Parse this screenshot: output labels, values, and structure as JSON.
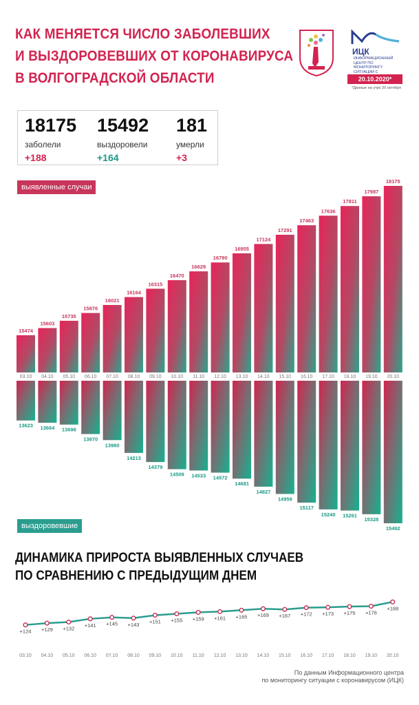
{
  "header": {
    "title_lines": [
      "Как меняется число заболевших",
      "и выздоровевших от коронавируса",
      "в Волгоградской области"
    ],
    "logo_name": "ИЦК",
    "logo_subtitle": "Информационный центр по мониторингу ситуации с коронавирусом",
    "date": "20.10.2020*",
    "date_note": "*Данные на утро 20 октября"
  },
  "stats": {
    "cases": {
      "value": "18175",
      "label": "заболели",
      "delta": "+188"
    },
    "recovered": {
      "value": "15492",
      "label": "выздоровели",
      "delta": "+164"
    },
    "deaths": {
      "value": "181",
      "label": "умерли",
      "delta": "+3"
    }
  },
  "labels": {
    "cases_chip": "выявленные случаи",
    "recovered_chip": "выздоровевшие",
    "growth_title_lines": [
      "Динамика прироста выявленных случаев",
      "по сравнению с предыдущим днем"
    ]
  },
  "source_lines": [
    "По данным Информационного центра",
    "по мониторингу ситуации с коронавирусом (ИЦК)"
  ],
  "colors": {
    "red": "#d2244f",
    "green": "#1a9a86"
  },
  "chart_data": [
    {
      "type": "bar",
      "name": "cases",
      "categories": [
        "03.10",
        "04.10",
        "05.10",
        "06.10",
        "07.10",
        "08.10",
        "09.10",
        "10.10",
        "11.10",
        "12.10",
        "13.10",
        "14.10",
        "15.10",
        "16.10",
        "17.10",
        "18.10",
        "19.10",
        "20.10"
      ],
      "series": [
        {
          "name": "выявленные случаи",
          "values": [
            15474,
            15603,
            15735,
            15876,
            16021,
            16164,
            16315,
            16470,
            16629,
            16790,
            16955,
            17124,
            17291,
            17463,
            17636,
            17811,
            17987,
            18175
          ]
        }
      ]
    },
    {
      "type": "bar",
      "name": "recovered",
      "categories": [
        "03.10",
        "04.10",
        "05.10",
        "06.10",
        "07.10",
        "08.10",
        "09.10",
        "10.10",
        "11.10",
        "12.10",
        "13.10",
        "14.10",
        "15.10",
        "16.10",
        "17.10",
        "18.10",
        "19.10",
        "20.10"
      ],
      "series": [
        {
          "name": "выздоровевшие",
          "values": [
            13623,
            13664,
            13698,
            13870,
            13980,
            14213,
            14379,
            14509,
            14533,
            14572,
            14681,
            14827,
            14959,
            15117,
            15240,
            15261,
            15328,
            15492
          ]
        }
      ]
    },
    {
      "type": "line",
      "name": "growth",
      "categories": [
        "03.10",
        "04.10",
        "05.10",
        "06.10",
        "07.10",
        "08.10",
        "09.10",
        "10.10",
        "11.10",
        "12.10",
        "13.10",
        "14.10",
        "15.10",
        "16.10",
        "17.10",
        "18.10",
        "19.10",
        "20.10"
      ],
      "series": [
        {
          "values": [
            124,
            129,
            132,
            141,
            145,
            143,
            151,
            155,
            159,
            161,
            165,
            169,
            167,
            172,
            173,
            175,
            176,
            188
          ]
        }
      ],
      "value_labels": [
        "+124",
        "+129",
        "+132",
        "+141",
        "+145",
        "+143",
        "+151",
        "+155",
        "+159",
        "+161",
        "+165",
        "+169",
        "+167",
        "+172",
        "+173",
        "+175",
        "+176",
        "+188"
      ]
    }
  ]
}
